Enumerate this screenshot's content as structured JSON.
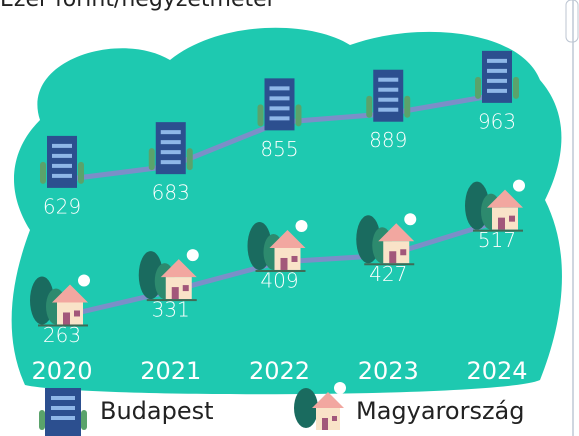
{
  "chart_data": {
    "type": "line",
    "title": "Ezer forint/négyzetméter",
    "categories": [
      "2020",
      "2021",
      "2022",
      "2023",
      "2024"
    ],
    "series": [
      {
        "name": "Budapest",
        "color": "#7b8fc8",
        "values": [
          629,
          683,
          855,
          889,
          963
        ]
      },
      {
        "name": "Magyarország",
        "color": "#7b8fc8",
        "values": [
          263,
          331,
          409,
          427,
          517
        ],
        "axis": "y2"
      }
    ],
    "ylim": [
      0,
      1100
    ],
    "y2lim": [
      200,
      950
    ]
  }
}
